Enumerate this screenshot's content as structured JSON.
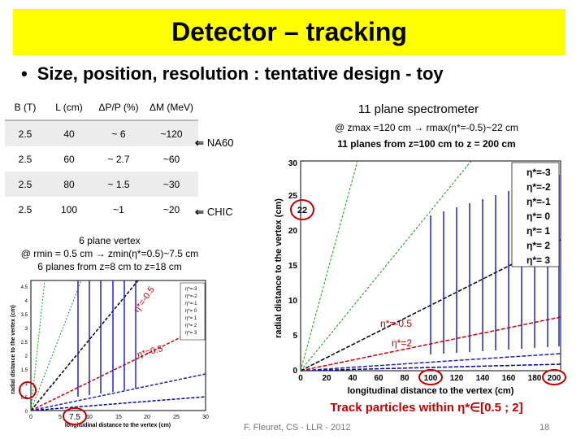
{
  "title": "Detector – tracking",
  "bullet": "Size, position, resolution : tentative design -  toy",
  "table": {
    "headers": [
      "B (T)",
      "L (cm)",
      "ΔP/P (%)",
      "ΔM (MeV)"
    ],
    "rows": [
      [
        "2.5",
        "40",
        "~ 6",
        "~120"
      ],
      [
        "2.5",
        "60",
        "~ 2.7",
        "~60"
      ],
      [
        "2.5",
        "80",
        "~ 1.5",
        "~30"
      ],
      [
        "2.5",
        "100",
        "~1",
        "~20"
      ]
    ]
  },
  "annotations": {
    "na60": "NA60",
    "chic": "CHIC",
    "arrow": "⇐"
  },
  "spectrometer": {
    "title": "11 plane spectrometer",
    "line1": "@ zmax =120 cm → rmax(η*=-0.5)~22 cm",
    "line2": "11 planes from z=100 cm to z = 200 cm"
  },
  "vertex": {
    "title": "6 plane vertex",
    "line1": "@ rmin = 0.5 cm → zmin(η*=0.5)~7.5 cm",
    "line2": "6 planes from z=8 cm to z=18 cm"
  },
  "small_plot": {
    "ylabel": "radial distance to the vertex (cm)",
    "xlabel": "longitudinal distance to the vertex (cm)",
    "xticks": [
      "0",
      "5",
      "10",
      "15",
      "20",
      "25",
      "30"
    ],
    "yticks": [
      "0",
      "0.5",
      "1",
      "1.5",
      "2",
      "2.5",
      "3",
      "3.5",
      "4",
      "4.5"
    ],
    "legend": [
      "η*=-3",
      "η*=-2",
      "η*=-1",
      "η*= 0",
      "η*= 1",
      "η*= 2",
      "η*= 3"
    ],
    "label_upper": "η*=-0.5",
    "label_lower": "η*=0.5",
    "highlight": "7.5"
  },
  "big_plot": {
    "ylabel": "radial distance to the vertex (cm)",
    "xlabel": "longitudinal distance to the vertex (cm)",
    "xticks": [
      "0",
      "20",
      "40",
      "60",
      "80",
      "100",
      "120",
      "140",
      "160",
      "180",
      "200"
    ],
    "yticks": [
      "0",
      "5",
      "10",
      "15",
      "20",
      "25",
      "30"
    ],
    "legend": [
      "η*=-3",
      "η*=-2",
      "η*=-1",
      "η*= 0",
      "η*= 1",
      "η*= 2",
      "η*= 3"
    ],
    "label_upper": "η*=-0.5",
    "label_lower": "η*=2",
    "highlight": "22"
  },
  "legend_colors": [
    "#3333cc",
    "#00aa00",
    "#228822",
    "#000000",
    "#cc0000",
    "#2222aa",
    "#0000aa"
  ],
  "track_particles": "Track particles within η*∈[0.5 ; 2]",
  "footer": "F. Fleuret, CS - LLR - 2012",
  "page": "18"
}
